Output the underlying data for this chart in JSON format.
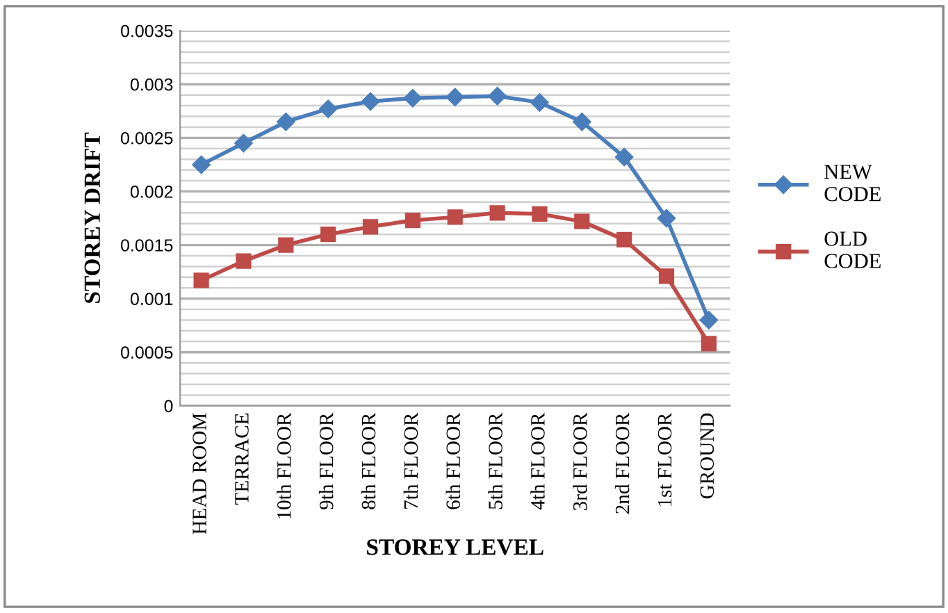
{
  "chart_data": {
    "type": "line",
    "xlabel": "STOREY LEVEL",
    "ylabel": "STOREY DRIFT",
    "categories": [
      "HEAD ROOM",
      "TERRACE",
      "10th FLOOR",
      "9th FLOOR",
      "8th FLOOR",
      "7th FLOOR",
      "6th FLOOR",
      "5th FLOOR",
      "4th FLOOR",
      "3rd FLOOR",
      "2nd FLOOR",
      "1st FLOOR",
      "GROUND"
    ],
    "series": [
      {
        "name": "NEW\nCODE",
        "color": "#4a7ebb",
        "marker": "diamond",
        "values": [
          0.00225,
          0.00245,
          0.00265,
          0.00277,
          0.00284,
          0.00287,
          0.00288,
          0.00289,
          0.00283,
          0.00265,
          0.00232,
          0.00175,
          0.0008
        ]
      },
      {
        "name": "OLD\nCODE",
        "color": "#be4b48",
        "marker": "square",
        "values": [
          0.00117,
          0.00135,
          0.0015,
          0.0016,
          0.00167,
          0.00173,
          0.00176,
          0.0018,
          0.00179,
          0.00172,
          0.00155,
          0.00121,
          0.00058
        ]
      }
    ],
    "ylim": [
      0,
      0.0035
    ],
    "yticks": [
      {
        "value": 0,
        "label": "0"
      },
      {
        "value": 0.0005,
        "label": "0.0005"
      },
      {
        "value": 0.001,
        "label": "0.001"
      },
      {
        "value": 0.0015,
        "label": "0.0015"
      },
      {
        "value": 0.002,
        "label": "0.002"
      },
      {
        "value": 0.0025,
        "label": "0.0025"
      },
      {
        "value": 0.003,
        "label": "0.003"
      },
      {
        "value": 0.0035,
        "label": "0.0035"
      }
    ],
    "grid": "y",
    "legend": "right",
    "line_style": "solid"
  }
}
